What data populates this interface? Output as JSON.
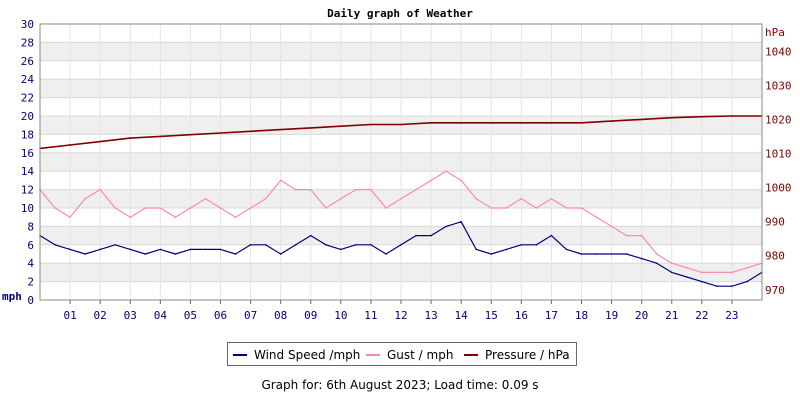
{
  "chart_data": {
    "type": "line",
    "title": "Daily graph of Weather",
    "left_axis": {
      "unit": "mph",
      "range": [
        0,
        30
      ],
      "ticks": [
        0,
        2,
        4,
        6,
        8,
        10,
        12,
        14,
        16,
        18,
        20,
        22,
        24,
        26,
        28,
        30
      ]
    },
    "right_axis": {
      "unit": "hPa",
      "range": [
        967,
        1048
      ],
      "ticks": [
        970,
        980,
        990,
        1000,
        1010,
        1020,
        1030,
        1040
      ]
    },
    "x_ticks": [
      "01",
      "02",
      "03",
      "04",
      "05",
      "06",
      "07",
      "08",
      "09",
      "10",
      "11",
      "12",
      "13",
      "14",
      "15",
      "16",
      "17",
      "18",
      "19",
      "20",
      "21",
      "22",
      "23"
    ],
    "x_range_hours": [
      0,
      24
    ],
    "grid": true,
    "legend_position": "bottom",
    "series": [
      {
        "name": "Wind Speed /mph",
        "axis": "left",
        "color": "#000080",
        "x_hours": [
          0,
          0.5,
          1,
          1.5,
          2,
          2.5,
          3,
          3.5,
          4,
          4.5,
          5,
          5.5,
          6,
          6.5,
          7,
          7.5,
          8,
          8.5,
          9,
          9.5,
          10,
          10.5,
          11,
          11.5,
          12,
          12.5,
          13,
          13.5,
          14,
          14.5,
          15,
          15.5,
          16,
          16.5,
          17,
          17.5,
          18,
          18.5,
          19,
          19.5,
          20,
          20.5,
          21,
          21.5,
          22,
          22.5,
          23,
          23.5,
          24
        ],
        "values": [
          7,
          6,
          5.5,
          5,
          5.5,
          6,
          5.5,
          5,
          5.5,
          5,
          5.5,
          5.5,
          5.5,
          5,
          6,
          6,
          5,
          6,
          7,
          6,
          5.5,
          6,
          6,
          5,
          6,
          7,
          7,
          8,
          8.5,
          5.5,
          5,
          5.5,
          6,
          6,
          7,
          5.5,
          5,
          5,
          5,
          5,
          4.5,
          4,
          3,
          2.5,
          2,
          1.5,
          1.5,
          2,
          3
        ]
      },
      {
        "name": "Gust / mph",
        "axis": "left",
        "color": "#ff88aa",
        "x_hours": [
          0,
          0.5,
          1,
          1.5,
          2,
          2.5,
          3,
          3.5,
          4,
          4.5,
          5,
          5.5,
          6,
          6.5,
          7,
          7.5,
          8,
          8.5,
          9,
          9.5,
          10,
          10.5,
          11,
          11.5,
          12,
          12.5,
          13,
          13.5,
          14,
          14.5,
          15,
          15.5,
          16,
          16.5,
          17,
          17.5,
          18,
          18.5,
          19,
          19.5,
          20,
          20.5,
          21,
          21.5,
          22,
          22.5,
          23,
          23.5,
          24
        ],
        "values": [
          12,
          10,
          9,
          11,
          12,
          10,
          9,
          10,
          10,
          9,
          10,
          11,
          10,
          9,
          10,
          11,
          13,
          12,
          12,
          10,
          11,
          12,
          12,
          10,
          11,
          12,
          13,
          14,
          13,
          11,
          10,
          10,
          11,
          10,
          11,
          10,
          10,
          9,
          8,
          7,
          7,
          5,
          4,
          3.5,
          3,
          3,
          3,
          3.5,
          4
        ]
      },
      {
        "name": "Pressure / hPa",
        "axis": "right",
        "color": "#800000",
        "x_hours": [
          0,
          1,
          2,
          3,
          4,
          5,
          6,
          7,
          8,
          9,
          10,
          11,
          12,
          13,
          14,
          15,
          16,
          17,
          18,
          19,
          20,
          21,
          22,
          23,
          24
        ],
        "values": [
          1011.5,
          1012.5,
          1013.5,
          1014.5,
          1015,
          1015.5,
          1016,
          1016.5,
          1017,
          1017.5,
          1018,
          1018.5,
          1018.5,
          1019,
          1019,
          1019,
          1019,
          1019,
          1019,
          1019.5,
          1020,
          1020.5,
          1020.8,
          1021,
          1021
        ]
      }
    ]
  },
  "footer_text": "Graph for: 6th August 2023; Load time: 0.09 s"
}
